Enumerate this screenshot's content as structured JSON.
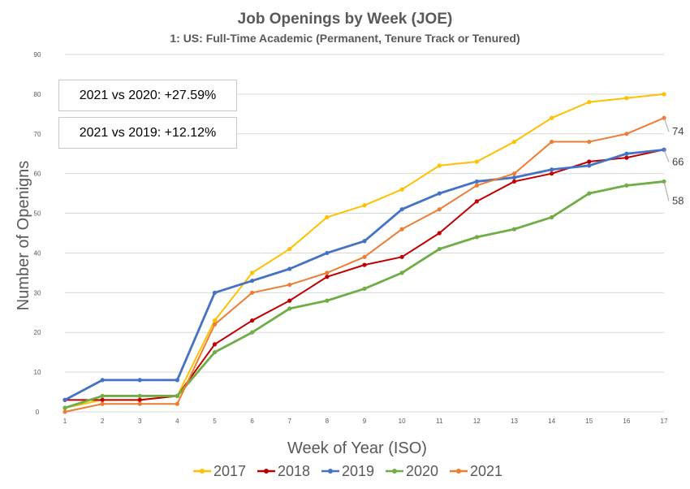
{
  "chart_data": {
    "type": "line",
    "title": "Job Openings by Week (JOE)",
    "subtitle": "1: US: Full-Time Academic (Permanent, Tenure Track or Tenured)",
    "xlabel": "Week of Year (ISO)",
    "ylabel": "Number of Openigns",
    "x": [
      1,
      2,
      3,
      4,
      5,
      6,
      7,
      8,
      9,
      10,
      11,
      12,
      13,
      14,
      15,
      16,
      17
    ],
    "ylim": [
      0,
      90
    ],
    "yticks": [
      0,
      10,
      20,
      30,
      40,
      50,
      60,
      70,
      80,
      90
    ],
    "grid": true,
    "legend_position": "bottom",
    "series": [
      {
        "name": "2017",
        "color": "#FFC000",
        "values": [
          1,
          3,
          3,
          4,
          23,
          35,
          41,
          49,
          52,
          56,
          62,
          63,
          68,
          74,
          78,
          79,
          80
        ]
      },
      {
        "name": "2018",
        "color": "#C00000",
        "values": [
          3,
          3,
          3,
          4,
          17,
          23,
          28,
          34,
          37,
          39,
          45,
          53,
          58,
          60,
          63,
          64,
          66
        ]
      },
      {
        "name": "2019",
        "color": "#4472C4",
        "values": [
          3,
          8,
          8,
          8,
          30,
          33,
          36,
          40,
          43,
          51,
          55,
          58,
          59,
          61,
          62,
          65,
          66
        ]
      },
      {
        "name": "2020",
        "color": "#70AD47",
        "values": [
          1,
          4,
          4,
          4,
          15,
          20,
          26,
          28,
          31,
          35,
          41,
          44,
          46,
          49,
          55,
          57,
          58
        ]
      },
      {
        "name": "2021",
        "color": "#ED7D31",
        "values": [
          0,
          2,
          2,
          2,
          22,
          30,
          32,
          35,
          39,
          46,
          51,
          57,
          60,
          68,
          68,
          70,
          74
        ]
      }
    ],
    "annotations": [
      {
        "text": "2021 vs 2020: +27.59%"
      },
      {
        "text": "2021 vs 2019: +12.12%"
      }
    ],
    "end_labels": [
      {
        "text": "74",
        "value": 74
      },
      {
        "text": "66",
        "value": 66
      },
      {
        "text": "58",
        "value": 58
      }
    ]
  }
}
